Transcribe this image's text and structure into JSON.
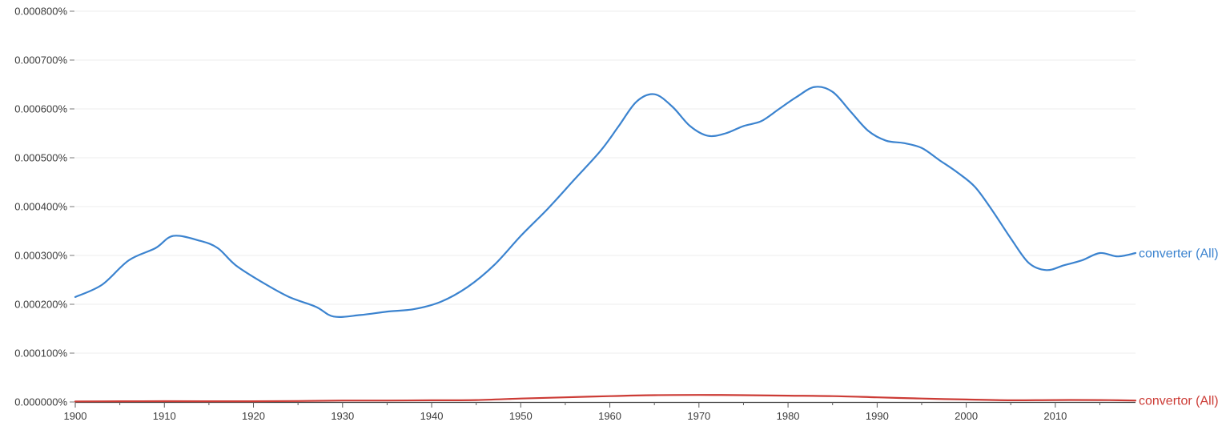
{
  "chart_data": {
    "type": "line",
    "title": "",
    "xlabel": "",
    "ylabel": "",
    "xlim": [
      1900,
      2019
    ],
    "ylim": [
      0,
      0.0008
    ],
    "grid": "horizontal",
    "x_ticks": [
      1900,
      1910,
      1920,
      1930,
      1940,
      1950,
      1960,
      1970,
      1980,
      1990,
      2000,
      2010
    ],
    "y_ticks": [
      0,
      0.0001,
      0.0002,
      0.0003,
      0.0004,
      0.0005,
      0.0006,
      0.0007,
      0.0008
    ],
    "y_tick_labels": [
      "0.000000%",
      "0.000100%",
      "0.000200%",
      "0.000300%",
      "0.000400%",
      "0.000500%",
      "0.000600%",
      "0.000700%",
      "0.000800%"
    ],
    "x_tick_labels": [
      "1900",
      "1910",
      "1920",
      "1930",
      "1940",
      "1950",
      "1960",
      "1970",
      "1980",
      "1990",
      "2000",
      "2010"
    ],
    "series": [
      {
        "name": "converter (All)",
        "color": "#3b83cf",
        "x": [
          1900,
          1903,
          1906,
          1909,
          1911,
          1914,
          1916,
          1918,
          1921,
          1924,
          1927,
          1929,
          1932,
          1935,
          1938,
          1941,
          1944,
          1947,
          1950,
          1953,
          1956,
          1959,
          1961,
          1963,
          1965,
          1967,
          1969,
          1971,
          1973,
          1975,
          1977,
          1979,
          1981,
          1983,
          1985,
          1987,
          1989,
          1991,
          1993,
          1995,
          1997,
          1999,
          2001,
          2003,
          2005,
          2007,
          2009,
          2011,
          2013,
          2015,
          2017,
          2019
        ],
        "values": [
          0.000215,
          0.00024,
          0.00029,
          0.000315,
          0.00034,
          0.00033,
          0.000315,
          0.00028,
          0.000245,
          0.000215,
          0.000195,
          0.000175,
          0.000178,
          0.000185,
          0.00019,
          0.000205,
          0.000235,
          0.00028,
          0.00034,
          0.000395,
          0.000455,
          0.000515,
          0.000565,
          0.000615,
          0.00063,
          0.000605,
          0.000565,
          0.000545,
          0.00055,
          0.000565,
          0.000575,
          0.0006,
          0.000625,
          0.000645,
          0.000635,
          0.000595,
          0.000555,
          0.000535,
          0.00053,
          0.00052,
          0.000495,
          0.00047,
          0.00044,
          0.00039,
          0.000335,
          0.000285,
          0.00027,
          0.00028,
          0.00029,
          0.000305,
          0.000298,
          0.000305
        ]
      },
      {
        "name": "convertor (All)",
        "color": "#cc3b35",
        "x": [
          1900,
          1905,
          1910,
          1915,
          1920,
          1925,
          1930,
          1935,
          1940,
          1945,
          1950,
          1955,
          1960,
          1965,
          1970,
          1975,
          1980,
          1985,
          1990,
          1995,
          2000,
          2005,
          2010,
          2015,
          2019
        ],
        "values": [
          1.2e-06,
          1.4e-06,
          1.6e-06,
          1.5e-06,
          1.5e-06,
          2e-06,
          3e-06,
          3e-06,
          3.5e-06,
          4e-06,
          7e-06,
          9.5e-06,
          1.2e-05,
          1.4e-05,
          1.45e-05,
          1.4e-05,
          1.3e-05,
          1.2e-05,
          9.5e-06,
          7e-06,
          5e-06,
          3.5e-06,
          4e-06,
          4e-06,
          3e-06
        ]
      }
    ]
  }
}
